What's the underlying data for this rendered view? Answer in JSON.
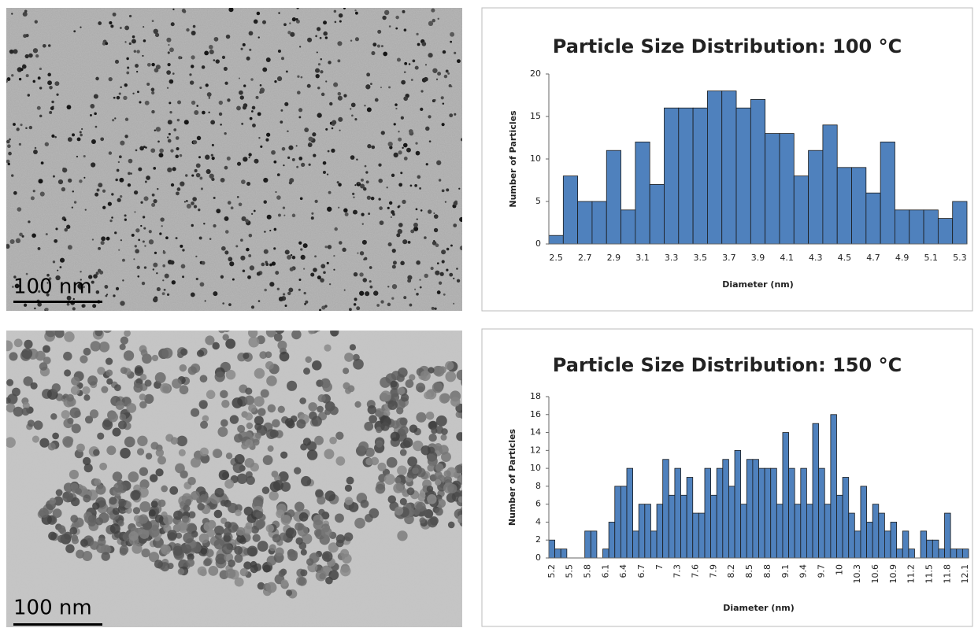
{
  "images": [
    {
      "scale_label": "100 nm"
    },
    {
      "scale_label": "100 nm"
    }
  ],
  "chart_data": [
    {
      "type": "bar",
      "title": "Particle Size Distribution: 100 °C",
      "xlabel": "Diameter (nm)",
      "ylabel": "Number of Particles",
      "categories": [
        "2.5",
        null,
        "2.7",
        null,
        "2.9",
        null,
        "3.1",
        null,
        "3.3",
        null,
        "3.5",
        null,
        "3.7",
        null,
        "3.9",
        null,
        "4.1",
        null,
        "4.3",
        null,
        "4.5",
        null,
        "4.7",
        null,
        "4.9",
        null,
        "5.1",
        null,
        "5.3"
      ],
      "values": [
        1,
        8,
        5,
        5,
        11,
        4,
        12,
        7,
        16,
        16,
        16,
        18,
        18,
        16,
        17,
        13,
        13,
        8,
        11,
        14,
        9,
        9,
        6,
        12,
        4,
        4,
        4,
        3,
        5
      ],
      "color": "#4f81bd",
      "ylim": [
        0,
        20
      ],
      "yticks": [
        0,
        5,
        10,
        15,
        20
      ],
      "grid": false
    },
    {
      "type": "bar",
      "title": "Particle Size Distribution: 150 °C",
      "xlabel": "Diameter (nm)",
      "ylabel": "Number of Particles",
      "categories": [
        "5.2",
        null,
        null,
        "5.5",
        null,
        null,
        "5.8",
        null,
        null,
        "6.1",
        null,
        null,
        "6.4",
        null,
        null,
        "6.7",
        null,
        null,
        "7",
        null,
        null,
        "7.3",
        null,
        null,
        "7.6",
        null,
        null,
        "7.9",
        null,
        null,
        "8.2",
        null,
        null,
        "8.5",
        null,
        null,
        "8.8",
        null,
        null,
        "9.1",
        null,
        null,
        "9.4",
        null,
        null,
        "9.7",
        null,
        null,
        "10",
        null,
        null,
        "10.3",
        null,
        null,
        "10.6",
        null,
        null,
        "10.9",
        null,
        null,
        "11.2",
        null,
        null,
        "11.5",
        null,
        null,
        "11.8",
        null,
        null,
        "12.1"
      ],
      "values": [
        2,
        1,
        1,
        0,
        0,
        0,
        3,
        3,
        0,
        1,
        4,
        8,
        8,
        10,
        3,
        6,
        6,
        3,
        6,
        11,
        7,
        10,
        7,
        9,
        5,
        5,
        10,
        7,
        10,
        11,
        8,
        12,
        6,
        11,
        11,
        10,
        10,
        10,
        6,
        14,
        10,
        6,
        10,
        6,
        15,
        10,
        6,
        16,
        7,
        9,
        5,
        3,
        8,
        4,
        6,
        5,
        3,
        4,
        1,
        3,
        1,
        0,
        3,
        2,
        2,
        1,
        5,
        1,
        1,
        1
      ],
      "color": "#4f81bd",
      "ylim": [
        0,
        18
      ],
      "yticks": [
        0,
        2,
        4,
        6,
        8,
        10,
        12,
        14,
        16,
        18
      ],
      "grid": false
    }
  ]
}
